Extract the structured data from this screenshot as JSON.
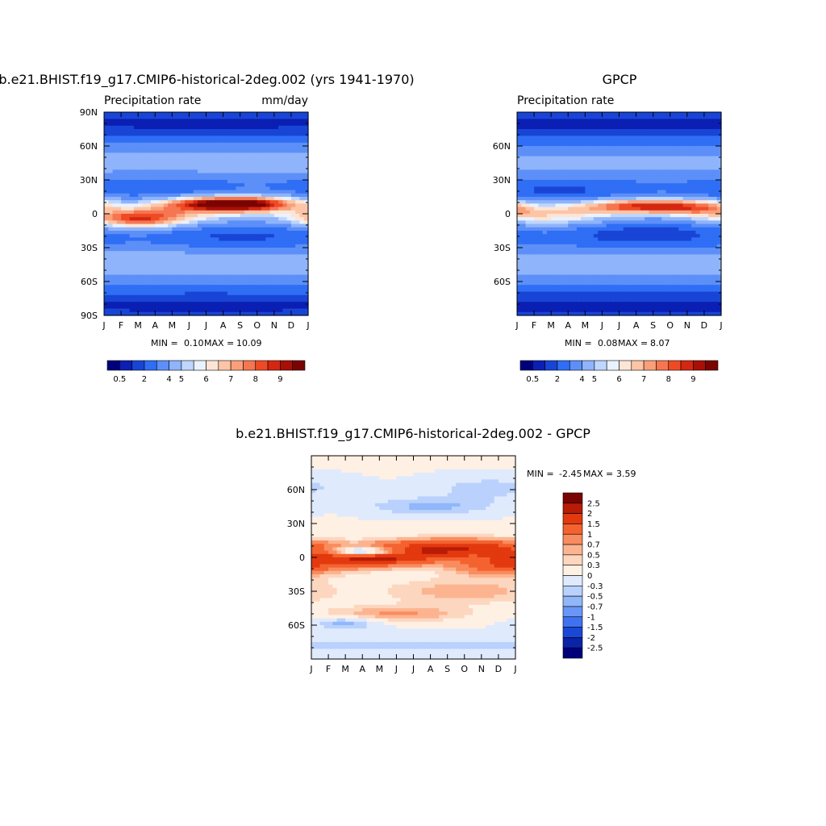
{
  "chart_data": [
    {
      "type": "heatmap",
      "title": "b.e21.BHIST.f19_g17.CMIP6-historical-2deg.002 (yrs 1941-1970)",
      "left_label": "Precipitation rate",
      "right_label": "mm/day",
      "x_ticks": [
        "J",
        "F",
        "M",
        "A",
        "M",
        "J",
        "J",
        "A",
        "S",
        "O",
        "N",
        "D",
        "J"
      ],
      "y_ticks": [
        "90N",
        "60N",
        "30N",
        "0",
        "30S",
        "60S",
        "90S"
      ],
      "ylim": [
        -90,
        90
      ],
      "stats": {
        "min_label": "MIN =",
        "min": "0.10",
        "max_label": "MAX =",
        "max": "10.09"
      },
      "colorbar": {
        "orientation": "horizontal",
        "colors": [
          "#00007d",
          "#0b1fb3",
          "#1845d6",
          "#2f6ef5",
          "#5d8ff8",
          "#8fb4fb",
          "#bfd6fd",
          "#e9f2fe",
          "#fde5d6",
          "#fcc5a6",
          "#f9a07a",
          "#f57650",
          "#ef4a26",
          "#d42711",
          "#a81005",
          "#7a0402"
        ],
        "labels": [
          "0.5",
          "2",
          "4",
          "5",
          "6",
          "7",
          "8",
          "9"
        ]
      },
      "field": {
        "base": 3.2,
        "features": [
          {
            "amp": 4.0,
            "lat0": -5,
            "lat1": -5,
            "month_center": 2.0,
            "month_width": 2.2,
            "lat_width": 6
          },
          {
            "amp": 6.5,
            "lat0": 9,
            "lat1": 9,
            "month_center": 7.6,
            "month_width": 2.8,
            "lat_width": 5
          },
          {
            "amp": 2.2,
            "lat0": 2,
            "lat1": 2,
            "month_center": 4.5,
            "month_width": 6.0,
            "lat_width": 9
          },
          {
            "amp": 1.6,
            "lat0": -43,
            "lat1": -43,
            "month_center": 6.0,
            "month_width": 20.0,
            "lat_width": 10
          },
          {
            "amp": 1.4,
            "lat0": 45,
            "lat1": 45,
            "month_center": 9.0,
            "month_width": 20.0,
            "lat_width": 10
          },
          {
            "amp": -1.6,
            "lat0": -20,
            "lat1": -20,
            "month_center": 8.0,
            "month_width": 4.0,
            "lat_width": 9
          },
          {
            "amp": -1.3,
            "lat0": 22,
            "lat1": 22,
            "month_center": 3.0,
            "month_width": 4.0,
            "lat_width": 9
          },
          {
            "amp": -2.4,
            "lat0": 80,
            "lat1": 80,
            "month_center": 6.0,
            "month_width": 20.0,
            "lat_width": 10
          },
          {
            "amp": -2.4,
            "lat0": -82,
            "lat1": -82,
            "month_center": 6.0,
            "month_width": 20.0,
            "lat_width": 10
          }
        ]
      }
    },
    {
      "type": "heatmap",
      "title": "GPCP",
      "left_label": "Precipitation rate",
      "right_label": "",
      "x_ticks": [
        "J",
        "F",
        "M",
        "A",
        "M",
        "J",
        "J",
        "A",
        "S",
        "O",
        "N",
        "D",
        "J"
      ],
      "y_ticks": [
        "60N",
        "30N",
        "0",
        "30S",
        "60S"
      ],
      "ylim": [
        -90,
        90
      ],
      "stats": {
        "min_label": "MIN =",
        "min": "0.08",
        "max_label": "MAX =",
        "max": "8.07"
      },
      "colorbar": {
        "orientation": "horizontal",
        "colors": [
          "#00007d",
          "#0b1fb3",
          "#1845d6",
          "#2f6ef5",
          "#5d8ff8",
          "#8fb4fb",
          "#bfd6fd",
          "#e9f2fe",
          "#fde5d6",
          "#fcc5a6",
          "#f9a07a",
          "#f57650",
          "#ef4a26",
          "#d42711",
          "#a81005",
          "#7a0402"
        ],
        "labels": [
          "0.5",
          "2",
          "4",
          "5",
          "6",
          "7",
          "8",
          "9"
        ]
      },
      "field": {
        "base": 3.0,
        "features": [
          {
            "amp": 5.2,
            "lat0": 7,
            "lat1": 7,
            "month_center": 7.5,
            "month_width": 3.2,
            "lat_width": 5
          },
          {
            "amp": 2.6,
            "lat0": -3,
            "lat1": -3,
            "month_center": 2.5,
            "month_width": 3.0,
            "lat_width": 7
          },
          {
            "amp": 2.0,
            "lat0": 3,
            "lat1": 3,
            "month_center": 11.0,
            "month_width": 2.5,
            "lat_width": 7
          },
          {
            "amp": 1.5,
            "lat0": -45,
            "lat1": -45,
            "month_center": 6.0,
            "month_width": 20.0,
            "lat_width": 10
          },
          {
            "amp": 1.3,
            "lat0": 45,
            "lat1": 45,
            "month_center": 9.0,
            "month_width": 20.0,
            "lat_width": 10
          },
          {
            "amp": -1.8,
            "lat0": -18,
            "lat1": -18,
            "month_center": 7.5,
            "month_width": 3.5,
            "lat_width": 8
          },
          {
            "amp": -1.3,
            "lat0": 20,
            "lat1": 20,
            "month_center": 2.5,
            "month_width": 3.5,
            "lat_width": 8
          },
          {
            "amp": -2.3,
            "lat0": 80,
            "lat1": 80,
            "month_center": 6.0,
            "month_width": 20.0,
            "lat_width": 10
          },
          {
            "amp": -2.3,
            "lat0": -82,
            "lat1": -82,
            "month_center": 6.0,
            "month_width": 20.0,
            "lat_width": 10
          }
        ]
      }
    },
    {
      "type": "heatmap",
      "title": "b.e21.BHIST.f19_g17.CMIP6-historical-2deg.002 - GPCP",
      "left_label": "",
      "right_label": "",
      "x_ticks": [
        "J",
        "F",
        "M",
        "A",
        "M",
        "J",
        "J",
        "A",
        "S",
        "O",
        "N",
        "D",
        "J"
      ],
      "y_ticks": [
        "60N",
        "30N",
        "0",
        "30S",
        "60S"
      ],
      "ylim": [
        -90,
        90
      ],
      "stats": {
        "min_label": "MIN =",
        "min": "-2.45",
        "max_label": "MAX =",
        "max": "3.59"
      },
      "colorbar": {
        "orientation": "vertical",
        "colors": [
          "#7a0402",
          "#b81b06",
          "#e3390f",
          "#f4622f",
          "#f98c5e",
          "#fcb490",
          "#fdd6bf",
          "#fff0e4",
          "#dfeafd",
          "#b9d1fc",
          "#91b7fa",
          "#6996f7",
          "#3e72f0",
          "#1a48d6",
          "#0b23a6",
          "#00007d"
        ],
        "labels": [
          "2.5",
          "2",
          "1.5",
          "1",
          "0.7",
          "0.5",
          "0.3",
          "0",
          "-0.3",
          "-0.5",
          "-0.7",
          "-1",
          "-1.5",
          "-2",
          "-2.5"
        ]
      },
      "field": {
        "base": 0.05,
        "features": [
          {
            "amp": 2.1,
            "lat0": 0,
            "lat1": 0,
            "month_center": 3.5,
            "month_width": 2.6,
            "lat_width": 6
          },
          {
            "amp": -2.2,
            "lat0": 5,
            "lat1": 5,
            "month_center": 3.2,
            "month_width": 1.6,
            "lat_width": 3
          },
          {
            "amp": 1.9,
            "lat0": 8,
            "lat1": 8,
            "month_center": 8.5,
            "month_width": 3.5,
            "lat_width": 6
          },
          {
            "amp": 1.2,
            "lat0": -8,
            "lat1": -8,
            "month_center": 11.0,
            "month_width": 2.0,
            "lat_width": 6
          },
          {
            "amp": 0.6,
            "lat0": -30,
            "lat1": -30,
            "month_center": 9.0,
            "month_width": 3.5,
            "lat_width": 8
          },
          {
            "amp": 0.7,
            "lat0": -50,
            "lat1": -50,
            "month_center": 5.0,
            "month_width": 3.0,
            "lat_width": 5
          },
          {
            "amp": -0.6,
            "lat0": 45,
            "lat1": 45,
            "month_center": 7.0,
            "month_width": 3.0,
            "lat_width": 6
          },
          {
            "amp": -0.7,
            "lat0": -58,
            "lat1": -58,
            "month_center": 2.0,
            "month_width": 1.4,
            "lat_width": 4
          },
          {
            "amp": -0.4,
            "lat0": -78,
            "lat1": -78,
            "month_center": 6.0,
            "month_width": 20.0,
            "lat_width": 8
          },
          {
            "amp": -0.45,
            "lat0": 62,
            "lat1": 62,
            "month_center": 10.5,
            "month_width": 3.0,
            "lat_width": 8
          }
        ]
      }
    }
  ]
}
